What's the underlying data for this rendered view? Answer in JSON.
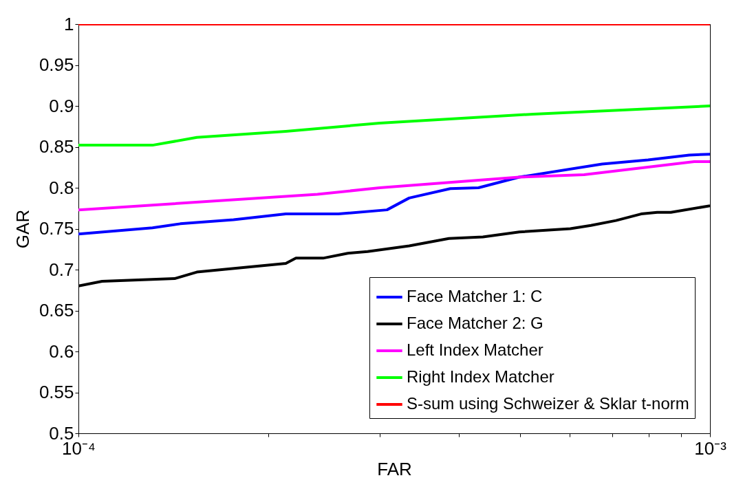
{
  "chart_data": {
    "type": "line",
    "xlabel": "FAR",
    "ylabel": "GAR",
    "log": "x",
    "xlim": [
      0.0001,
      0.001
    ],
    "ylim": [
      0.5,
      1
    ],
    "xticks": [
      {
        "value": 0.0001,
        "label": "10⁻⁴"
      },
      {
        "value": 0.0002,
        "label": null
      },
      {
        "value": 0.0003,
        "label": null
      },
      {
        "value": 0.0004,
        "label": null
      },
      {
        "value": 0.0005,
        "label": null
      },
      {
        "value": 0.0006,
        "label": null
      },
      {
        "value": 0.0007,
        "label": null
      },
      {
        "value": 0.0008,
        "label": null
      },
      {
        "value": 0.0009,
        "label": null
      },
      {
        "value": 0.001,
        "label": "10⁻³"
      }
    ],
    "yticks": [
      0.5,
      0.55,
      0.6,
      0.65,
      0.7,
      0.75,
      0.8,
      0.85,
      0.9,
      0.95,
      1
    ],
    "grid": false,
    "legend": "bottom right",
    "series": [
      {
        "name": "Face Matcher 1: C",
        "color": "#0000ff",
        "x": [
          0.0001,
          0.000131,
          0.000145,
          0.000176,
          0.000213,
          0.000258,
          0.000308,
          0.000334,
          0.000388,
          0.00043,
          0.000499,
          0.000675,
          0.000798,
          0.000927,
          0.001
        ],
        "values": [
          0.7435,
          0.751,
          0.756,
          0.761,
          0.768,
          0.768,
          0.773,
          0.7875,
          0.799,
          0.8,
          0.813,
          0.829,
          0.834,
          0.84,
          0.841
        ]
      },
      {
        "name": "Face Matcher 2: G",
        "color": "#000000",
        "x": [
          0.0001,
          0.000109,
          0.000142,
          0.000154,
          0.000213,
          0.000221,
          0.000244,
          0.000267,
          0.000287,
          0.000334,
          0.000386,
          0.000437,
          0.000499,
          0.000601,
          0.000648,
          0.00071,
          0.000778,
          0.000825,
          0.000867,
          0.001
        ],
        "values": [
          0.68,
          0.6857,
          0.689,
          0.697,
          0.7076,
          0.714,
          0.714,
          0.72,
          0.722,
          0.729,
          0.738,
          0.74,
          0.746,
          0.75,
          0.754,
          0.76,
          0.768,
          0.77,
          0.77,
          0.778
        ]
      },
      {
        "name": "Left Index Matcher",
        "color": "#ff00ff",
        "x": [
          0.0001,
          0.000239,
          0.0003,
          0.000499,
          0.000632,
          0.000944,
          0.001
        ],
        "values": [
          0.773,
          0.792,
          0.8,
          0.813,
          0.816,
          0.832,
          0.832
        ]
      },
      {
        "name": "Right Index Matcher",
        "color": "#00ff00",
        "x": [
          0.0001,
          0.000131,
          0.000154,
          0.000213,
          0.0003,
          0.000525,
          0.001
        ],
        "values": [
          0.852,
          0.852,
          0.8615,
          0.869,
          0.879,
          0.89,
          0.9
        ]
      },
      {
        "name": "S-sum using Schweizer & Sklar t-norm",
        "color": "#ff0000",
        "x": [
          0.0001,
          0.001
        ],
        "values": [
          1,
          1
        ]
      }
    ]
  }
}
